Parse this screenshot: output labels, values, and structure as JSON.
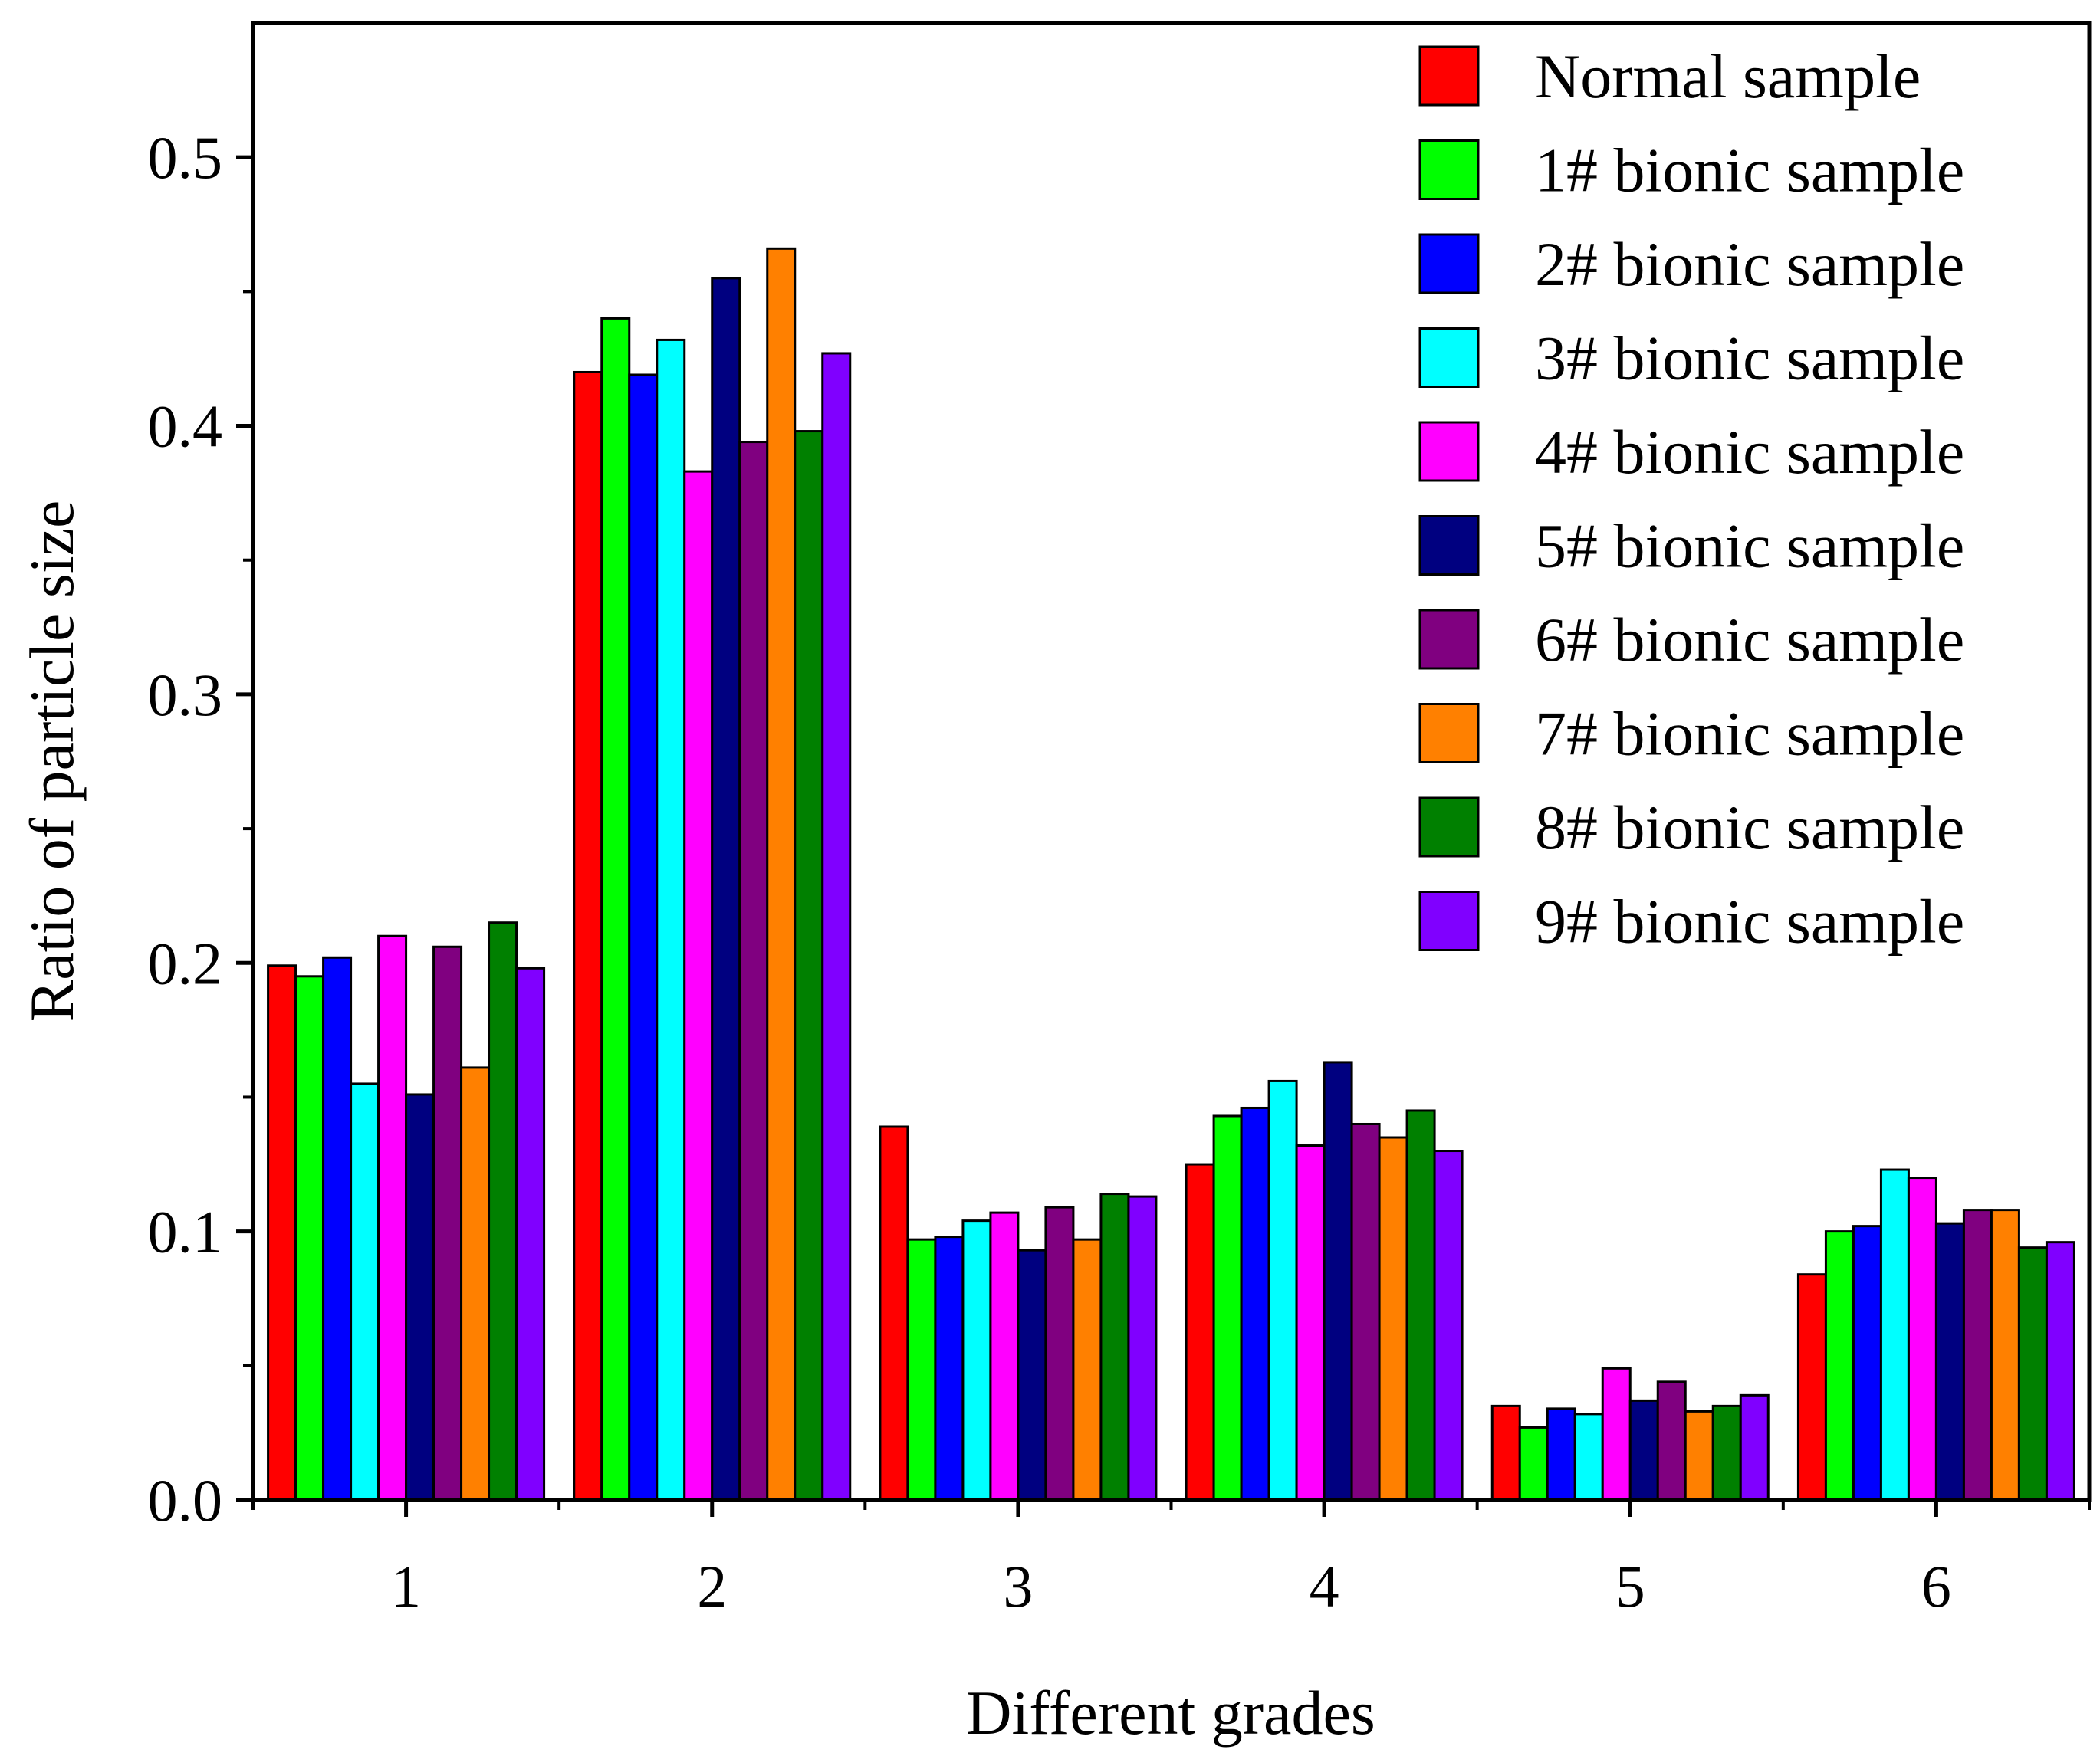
{
  "chart_data": {
    "type": "bar",
    "title": "",
    "xlabel": "Different grades",
    "ylabel": "Ratio of particle size",
    "categories": [
      "1",
      "2",
      "3",
      "4",
      "5",
      "6"
    ],
    "ylim": [
      0,
      0.55
    ],
    "yticks": [
      "0.0",
      "0.1",
      "0.2",
      "0.3",
      "0.4",
      "0.5"
    ],
    "ytick_values": [
      0,
      0.1,
      0.2,
      0.3,
      0.4,
      0.5
    ],
    "legend_position": "top-right",
    "grid": false,
    "series": [
      {
        "name": "Normal sample",
        "color": "#ff0000",
        "values": [
          0.199,
          0.42,
          0.139,
          0.125,
          0.035,
          0.084
        ]
      },
      {
        "name": "1# bionic sample",
        "color": "#00ff00",
        "values": [
          0.195,
          0.44,
          0.097,
          0.143,
          0.027,
          0.1
        ]
      },
      {
        "name": "2# bionic sample",
        "color": "#0000ff",
        "values": [
          0.202,
          0.419,
          0.098,
          0.146,
          0.034,
          0.102
        ]
      },
      {
        "name": "3# bionic sample",
        "color": "#00ffff",
        "values": [
          0.155,
          0.432,
          0.104,
          0.156,
          0.032,
          0.123
        ]
      },
      {
        "name": "4# bionic sample",
        "color": "#ff00ff",
        "values": [
          0.21,
          0.383,
          0.107,
          0.132,
          0.049,
          0.12
        ]
      },
      {
        "name": "5# bionic sample",
        "color": "#000080",
        "values": [
          0.151,
          0.455,
          0.093,
          0.163,
          0.037,
          0.103
        ]
      },
      {
        "name": "6# bionic sample",
        "color": "#800080",
        "values": [
          0.206,
          0.394,
          0.109,
          0.14,
          0.044,
          0.108
        ]
      },
      {
        "name": "7# bionic sample",
        "color": "#ff8000",
        "values": [
          0.161,
          0.466,
          0.097,
          0.135,
          0.033,
          0.108
        ]
      },
      {
        "name": "8# bionic sample",
        "color": "#008000",
        "values": [
          0.215,
          0.398,
          0.114,
          0.145,
          0.035,
          0.094
        ]
      },
      {
        "name": "9# bionic sample",
        "color": "#8000ff",
        "values": [
          0.198,
          0.427,
          0.113,
          0.13,
          0.039,
          0.096
        ]
      }
    ]
  }
}
